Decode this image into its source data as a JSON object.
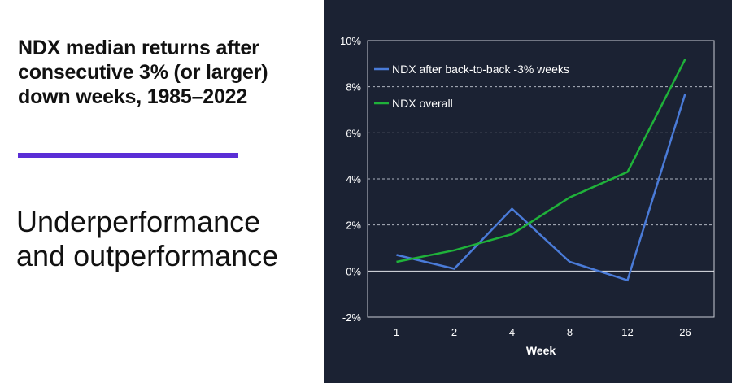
{
  "headline": "NDX median returns after consecutive 3% (or larger) down weeks, 1985–2022",
  "subhead": "Underperformance and outperformance",
  "colors": {
    "panel_bg": "#1b2233",
    "accent_rule": "#5a2ed6",
    "series_back_to_back": "#4a7bd8",
    "series_overall": "#1fb23a"
  },
  "chart_data": {
    "type": "line",
    "xlabel": "Week",
    "ylabel": "",
    "categories": [
      "1",
      "2",
      "4",
      "8",
      "12",
      "26"
    ],
    "ylim": [
      -2,
      10
    ],
    "yticks": [
      -2,
      0,
      2,
      4,
      6,
      8,
      10
    ],
    "ytick_labels": [
      "-2%",
      "0%",
      "2%",
      "4%",
      "6%",
      "8%",
      "10%"
    ],
    "grid": "horizontal-dashed",
    "legend_position": "top-left",
    "series": [
      {
        "name": "NDX after back-to-back -3% weeks",
        "color": "#4a7bd8",
        "values": [
          0.7,
          0.1,
          2.7,
          0.4,
          -0.4,
          7.7
        ]
      },
      {
        "name": "NDX overall",
        "color": "#1fb23a",
        "values": [
          0.4,
          0.9,
          1.6,
          3.2,
          4.3,
          9.2
        ]
      }
    ]
  }
}
